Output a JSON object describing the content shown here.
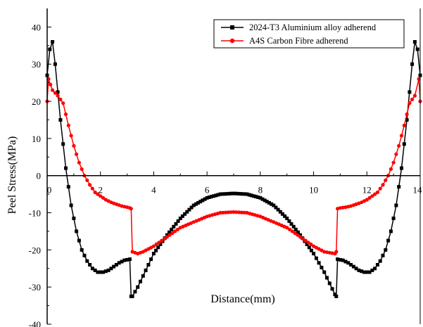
{
  "chart_data": {
    "type": "line",
    "xlabel": "Distance(mm)",
    "ylabel": "Peel Stress(MPa)",
    "xlim": [
      0,
      14
    ],
    "ylim": [
      -40,
      45
    ],
    "xticks": [
      "0",
      "2",
      "4",
      "6",
      "8",
      "10",
      "12",
      "14"
    ],
    "yticks": [
      "-40",
      "-30",
      "-20",
      "-10",
      "0",
      "10",
      "20",
      "30",
      "40"
    ],
    "grid": false,
    "legend_position": "top-right",
    "series": [
      {
        "name": "2024-T3 Aluminium alloy adherend",
        "color": "#000000",
        "marker": "square",
        "x": [
          0.0,
          0.1,
          0.2,
          0.3,
          0.5,
          0.7,
          0.9,
          1.1,
          1.3,
          1.5,
          1.7,
          1.9,
          2.1,
          2.3,
          2.5,
          2.7,
          2.9,
          3.1,
          3.15,
          3.2,
          3.4,
          3.6,
          3.8,
          4.0,
          4.5,
          5.0,
          5.5,
          6.0,
          6.5,
          7.0,
          7.5,
          8.0,
          8.5,
          9.0,
          9.5,
          10.0,
          10.4,
          10.6,
          10.8,
          10.85,
          10.9,
          11.1,
          11.3,
          11.5,
          11.7,
          11.9,
          12.1,
          12.3,
          12.5,
          12.7,
          12.9,
          13.1,
          13.3,
          13.5,
          13.7,
          13.8,
          13.9,
          14.0
        ],
        "y": [
          27,
          34,
          36,
          30,
          15,
          2,
          -8,
          -15,
          -20,
          -23,
          -25,
          -26,
          -26,
          -25.5,
          -24.5,
          -23.5,
          -22.8,
          -22.5,
          -32.5,
          -32.5,
          -30,
          -27,
          -24,
          -21,
          -16,
          -11.5,
          -8,
          -6,
          -5,
          -4.8,
          -5,
          -6,
          -8,
          -11.5,
          -16,
          -21,
          -26,
          -29,
          -32,
          -32.5,
          -22.5,
          -22.8,
          -23.5,
          -24.5,
          -25.5,
          -26,
          -26,
          -25,
          -23,
          -20,
          -15,
          -8,
          2,
          15,
          30,
          36,
          34,
          27
        ]
      },
      {
        "name": "A4S Carbon Fibre adherend",
        "color": "#ff0000",
        "marker": "circle",
        "x": [
          0.0,
          0.05,
          0.2,
          0.4,
          0.6,
          0.8,
          1.0,
          1.2,
          1.4,
          1.6,
          1.8,
          2.0,
          2.2,
          2.4,
          2.6,
          2.8,
          3.0,
          3.1,
          3.15,
          3.2,
          3.4,
          3.6,
          4.0,
          4.5,
          5.0,
          5.5,
          6.0,
          6.5,
          7.0,
          7.5,
          8.0,
          8.5,
          9.0,
          9.5,
          10.0,
          10.4,
          10.8,
          10.85,
          10.9,
          11.0,
          11.2,
          11.4,
          11.6,
          11.8,
          12.0,
          12.2,
          12.4,
          12.6,
          12.8,
          13.0,
          13.2,
          13.4,
          13.6,
          13.8,
          13.95,
          14.0
        ],
        "y": [
          20,
          26,
          23,
          21.5,
          19.5,
          13.5,
          8,
          3.5,
          0,
          -2.5,
          -4.5,
          -5.5,
          -6.5,
          -7.2,
          -7.7,
          -8.2,
          -8.5,
          -8.7,
          -8.9,
          -20.5,
          -21,
          -20.5,
          -19,
          -16.5,
          -14,
          -12.5,
          -11,
          -10,
          -9.8,
          -10,
          -11,
          -12.5,
          -14,
          -16.5,
          -19,
          -20.5,
          -21,
          -20.5,
          -8.9,
          -8.7,
          -8.5,
          -8.2,
          -7.7,
          -7.2,
          -6.5,
          -5.5,
          -4.5,
          -2.5,
          0,
          3.5,
          8,
          13.5,
          19.5,
          21.5,
          26,
          20
        ]
      }
    ]
  }
}
